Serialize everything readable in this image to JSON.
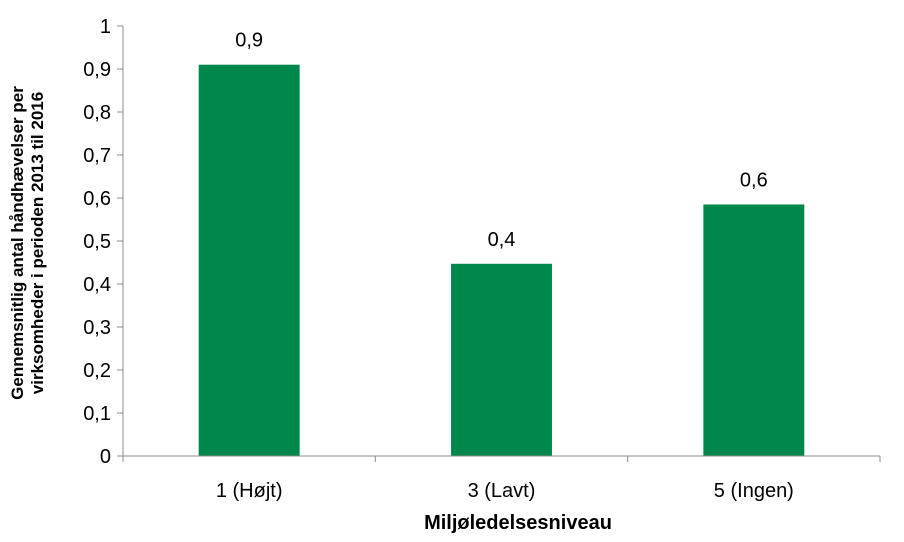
{
  "chart_data": {
    "type": "bar",
    "categories": [
      "1 (Højt)",
      "3 (Lavt)",
      "5 (Ingen)"
    ],
    "values": [
      0.91,
      0.447,
      0.585
    ],
    "data_labels": [
      "0,9",
      "0,4",
      "0,6"
    ],
    "bar_color": "#00874B",
    "ylim": [
      0,
      1
    ],
    "y_ticks": [
      0,
      0.1,
      0.2,
      0.3,
      0.4,
      0.5,
      0.6,
      0.7,
      0.8,
      0.9,
      1
    ],
    "y_tick_labels": [
      "0",
      "0,1",
      "0,2",
      "0,3",
      "0,4",
      "0,5",
      "0,6",
      "0,7",
      "0,8",
      "0,9",
      "1"
    ],
    "xlabel": "Miljøledelsesniveau",
    "ylabel_line1": "Gennemsnitlig antal håndhævelser per",
    "ylabel_line2": "virksomheder i perioden 2013 til 2016",
    "grid": false,
    "legend": "none"
  }
}
